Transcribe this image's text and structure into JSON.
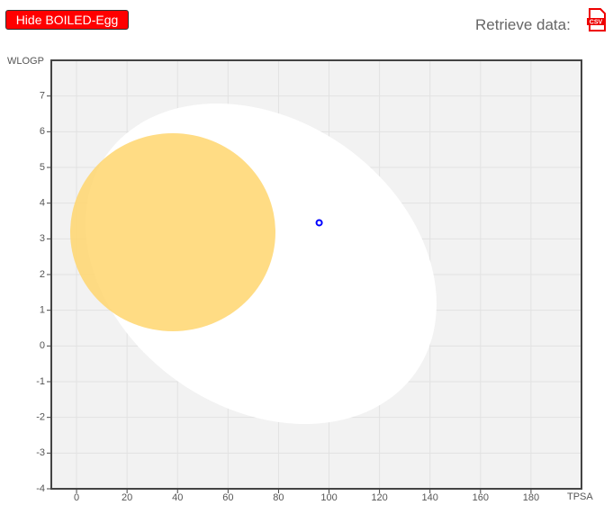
{
  "controls": {
    "toggle_button": "Hide BOILED-Egg",
    "retrieve_label": "Retrieve data:",
    "csv_icon": "CSV"
  },
  "chart_data": {
    "type": "scatter",
    "x_label": "TPSA",
    "y_label": "WLOGP",
    "series": [
      {
        "color": "#0000ff",
        "x": [
          96.1
        ],
        "values": [
          3.45
        ]
      }
    ],
    "xlim": [
      -10,
      200
    ],
    "ylim": [
      -4,
      8
    ],
    "xticks": [
      0,
      20,
      40,
      60,
      80,
      100,
      120,
      140,
      160,
      180
    ],
    "yticks": [
      -4,
      -3,
      -2,
      -1,
      0,
      1,
      2,
      3,
      4,
      5,
      6,
      7
    ],
    "grid": true
  }
}
